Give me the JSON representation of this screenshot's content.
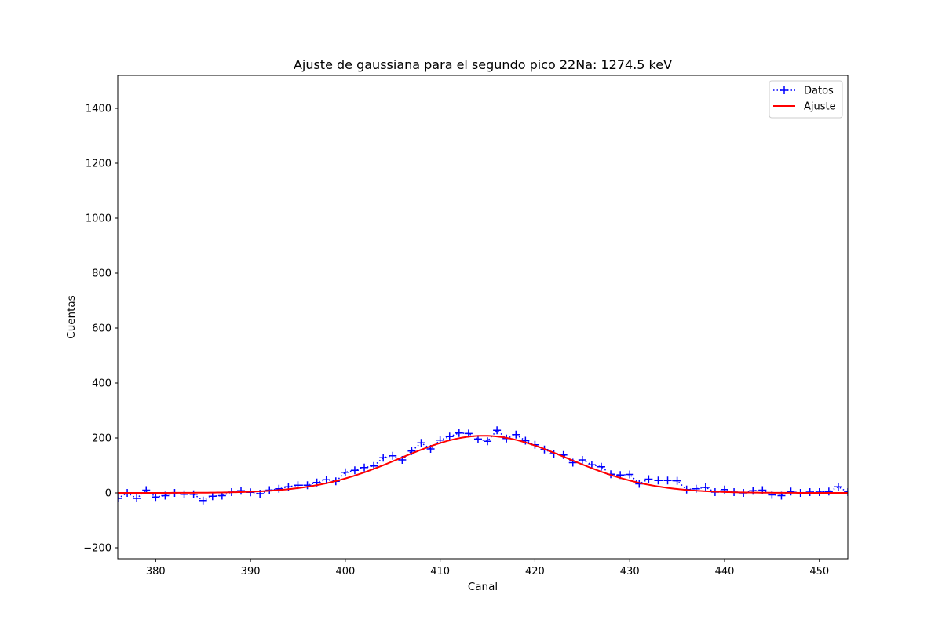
{
  "chart_data": {
    "type": "scatter",
    "title": "Ajuste de gaussiana para el segundo pico 22Na: 1274.5  keV",
    "xlabel": "Canal",
    "ylabel": "Cuentas",
    "xlim": [
      376,
      453
    ],
    "ylim": [
      -240,
      1520
    ],
    "xticks": [
      380,
      390,
      400,
      410,
      420,
      430,
      440,
      450
    ],
    "yticks": [
      -200,
      0,
      200,
      400,
      600,
      800,
      1000,
      1200,
      1400
    ],
    "grid": false,
    "legend": {
      "placement": "top-right",
      "entries": [
        "Datos",
        "Ajuste"
      ]
    },
    "colors": {
      "data": "#0000ff",
      "fit": "#ff0000"
    },
    "series": [
      {
        "name": "Datos",
        "style": "dotted-plus-markers",
        "x": [
          376,
          377,
          378,
          379,
          380,
          381,
          382,
          383,
          384,
          385,
          386,
          387,
          388,
          389,
          390,
          391,
          392,
          393,
          394,
          395,
          396,
          397,
          398,
          399,
          400,
          401,
          402,
          403,
          404,
          405,
          406,
          407,
          408,
          409,
          410,
          411,
          412,
          413,
          414,
          415,
          416,
          417,
          418,
          419,
          420,
          421,
          422,
          423,
          424,
          425,
          426,
          427,
          428,
          429,
          430,
          431,
          432,
          433,
          434,
          435,
          436,
          437,
          438,
          439,
          440,
          441,
          442,
          443,
          444,
          445,
          446,
          447,
          448,
          449,
          450,
          451,
          452,
          453
        ],
        "y": [
          -20,
          0,
          -20,
          10,
          -15,
          -10,
          0,
          -5,
          -5,
          -28,
          -12,
          -10,
          3,
          8,
          2,
          -3,
          10,
          15,
          22,
          28,
          28,
          38,
          48,
          42,
          75,
          82,
          92,
          98,
          128,
          135,
          120,
          152,
          182,
          160,
          192,
          205,
          218,
          216,
          196,
          188,
          228,
          198,
          212,
          190,
          175,
          158,
          143,
          138,
          110,
          120,
          102,
          95,
          68,
          65,
          67,
          33,
          50,
          45,
          45,
          44,
          12,
          15,
          20,
          3,
          12,
          3,
          0,
          8,
          10,
          -7,
          -10,
          5,
          0,
          3,
          3,
          5,
          22,
          3
        ]
      },
      {
        "name": "Ajuste",
        "style": "solid-line",
        "model": "gaussian",
        "amplitude": 208,
        "center": 414.6,
        "sigma": 8.8
      }
    ]
  }
}
